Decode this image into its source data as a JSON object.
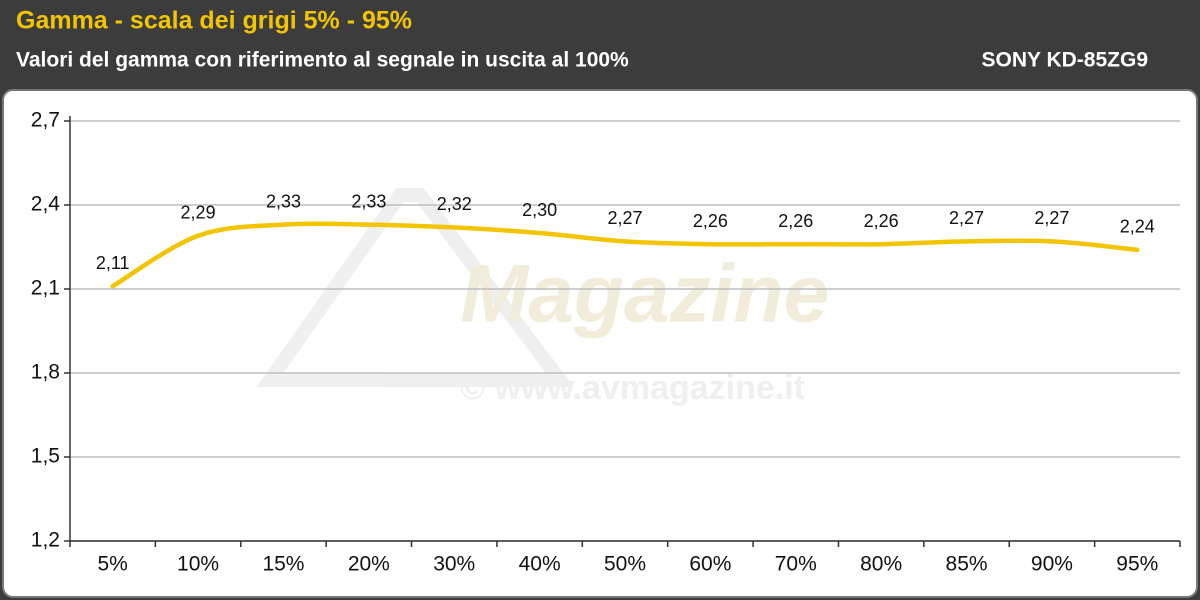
{
  "chart_data": {
    "type": "line",
    "title": "Gamma - scala dei grigi 5% - 95%",
    "subtitle": "Valori del gamma con riferimento al segnale in uscita al 100%",
    "model": "SONY KD-85ZG9",
    "watermark": {
      "brand": "Magazine",
      "url": "© www.avmagazine.it"
    },
    "categories": [
      "5%",
      "10%",
      "15%",
      "20%",
      "30%",
      "40%",
      "50%",
      "60%",
      "70%",
      "80%",
      "85%",
      "90%",
      "95%"
    ],
    "values": [
      2.11,
      2.29,
      2.33,
      2.33,
      2.32,
      2.3,
      2.27,
      2.26,
      2.26,
      2.26,
      2.27,
      2.27,
      2.24
    ],
    "value_labels": [
      "2,11",
      "2,29",
      "2,33",
      "2,33",
      "2,32",
      "2,30",
      "2,27",
      "2,26",
      "2,26",
      "2,26",
      "2,27",
      "2,27",
      "2,24"
    ],
    "color": "#f2c500",
    "ylim": [
      1.2,
      2.7
    ],
    "yticks": [
      {
        "value": 1.2,
        "label": "1,2"
      },
      {
        "value": 1.5,
        "label": "1,5"
      },
      {
        "value": 1.8,
        "label": "1,8"
      },
      {
        "value": 2.1,
        "label": "2,1"
      },
      {
        "value": 2.4,
        "label": "2,4"
      },
      {
        "value": 2.7,
        "label": "2,7"
      }
    ],
    "grid": true,
    "smooth": true
  }
}
